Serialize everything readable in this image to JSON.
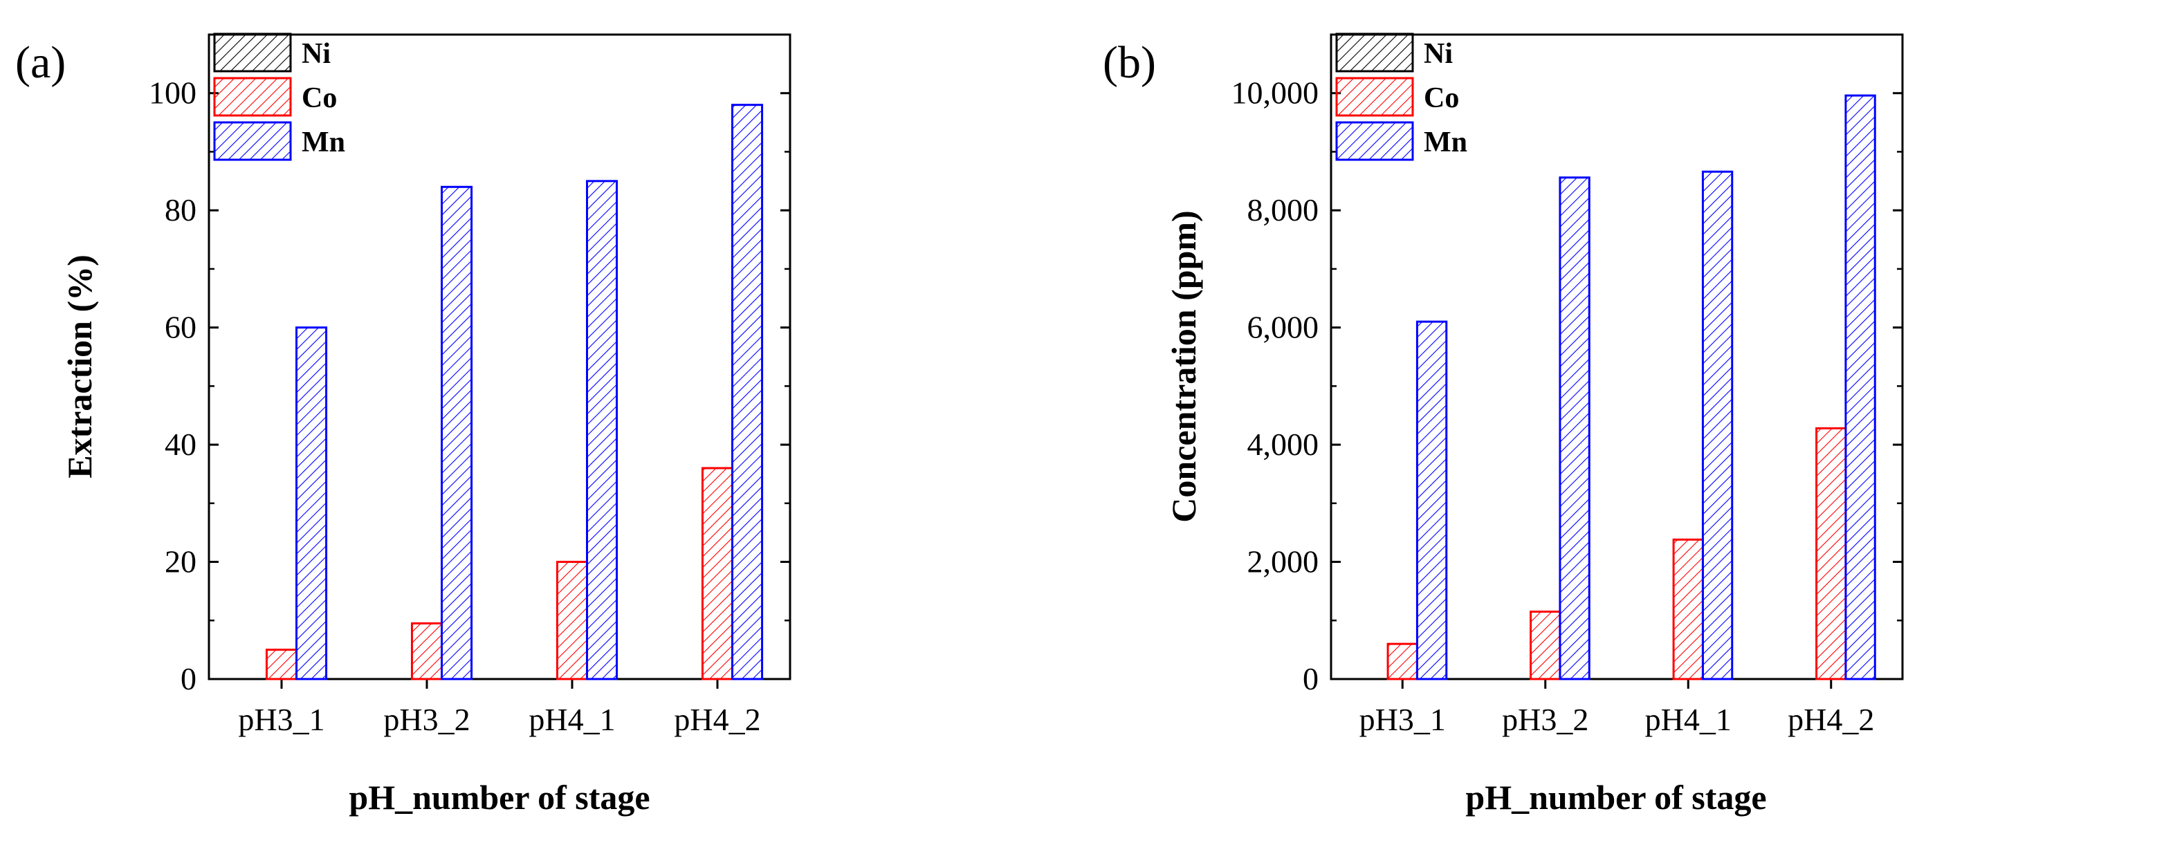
{
  "figure": {
    "panels": [
      "(a)",
      "(b)"
    ]
  },
  "chart_data": [
    {
      "type": "bar",
      "panel_label": "(a)",
      "categories": [
        "pH3_1",
        "pH3_2",
        "pH4_1",
        "pH4_2"
      ],
      "series": [
        {
          "name": "Ni",
          "color": "#000000",
          "values": [
            0,
            0,
            0,
            0
          ]
        },
        {
          "name": "Co",
          "color": "#ff0000",
          "values": [
            5,
            9.5,
            20,
            36
          ]
        },
        {
          "name": "Mn",
          "color": "#0000ff",
          "values": [
            60,
            84,
            85,
            98
          ]
        }
      ],
      "xlabel": "pH_number of stage",
      "ylabel": "Extraction (%)",
      "ylim": [
        0,
        110
      ],
      "yticks": [
        0,
        20,
        40,
        60,
        80,
        100
      ],
      "ytick_labels": [
        "0",
        "20",
        "40",
        "60",
        "80",
        "100"
      ],
      "legend": "top-left",
      "grid": false
    },
    {
      "type": "bar",
      "panel_label": "(b)",
      "categories": [
        "pH3_1",
        "pH3_2",
        "pH4_1",
        "pH4_2"
      ],
      "series": [
        {
          "name": "Ni",
          "color": "#000000",
          "values": [
            0,
            0,
            0,
            0
          ]
        },
        {
          "name": "Co",
          "color": "#ff0000",
          "values": [
            600,
            1150,
            2380,
            4280
          ]
        },
        {
          "name": "Mn",
          "color": "#0000ff",
          "values": [
            6100,
            8560,
            8660,
            9960
          ]
        }
      ],
      "xlabel": "pH_number of stage",
      "ylabel": "Concentration (ppm)",
      "ylim": [
        0,
        11000
      ],
      "yticks": [
        0,
        2000,
        4000,
        6000,
        8000,
        10000
      ],
      "ytick_labels": [
        "0",
        "2,000",
        "4,000",
        "6,000",
        "8,000",
        "10,000"
      ],
      "legend": "top-left",
      "grid": false
    }
  ]
}
